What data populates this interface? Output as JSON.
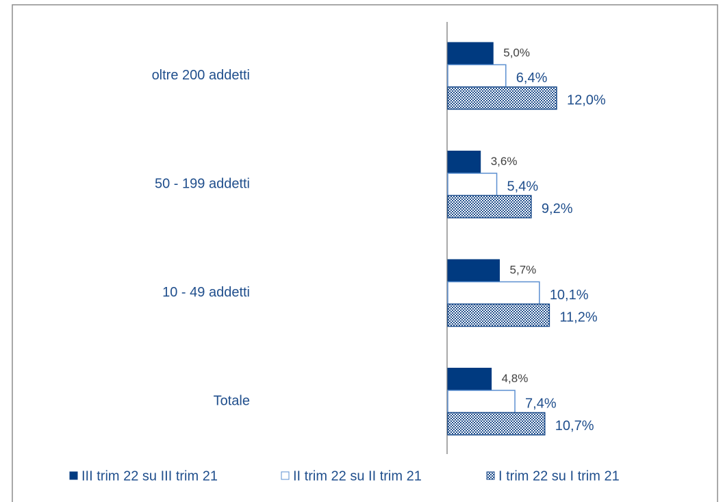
{
  "chart_data": {
    "type": "hbar",
    "categories": [
      "oltre 200 addetti",
      "50 - 199 addetti",
      "10 - 49 addetti",
      "Totale"
    ],
    "xlim": [
      0,
      20
    ],
    "series": [
      {
        "name": "III trim 22 su III trim 21",
        "color": "#003a80",
        "values": [
          5.0,
          3.6,
          5.7,
          4.8
        ],
        "value_labels": [
          "5,0%",
          "3,6%",
          "5,7%",
          "4,8%"
        ]
      },
      {
        "name": "II trim 22 su II trim 21",
        "color": "#5b8fd0",
        "values": [
          6.4,
          5.4,
          10.1,
          7.4
        ],
        "value_labels": [
          "6,4%",
          "5,4%",
          "10,1%",
          "7,4%"
        ]
      },
      {
        "name": "I trim 22 su I trim 21",
        "color": "#1f4e8c",
        "values": [
          12.0,
          9.2,
          11.2,
          10.7
        ],
        "value_labels": [
          "12,0%",
          "9,2%",
          "11,2%",
          "10,7%"
        ]
      }
    ]
  }
}
